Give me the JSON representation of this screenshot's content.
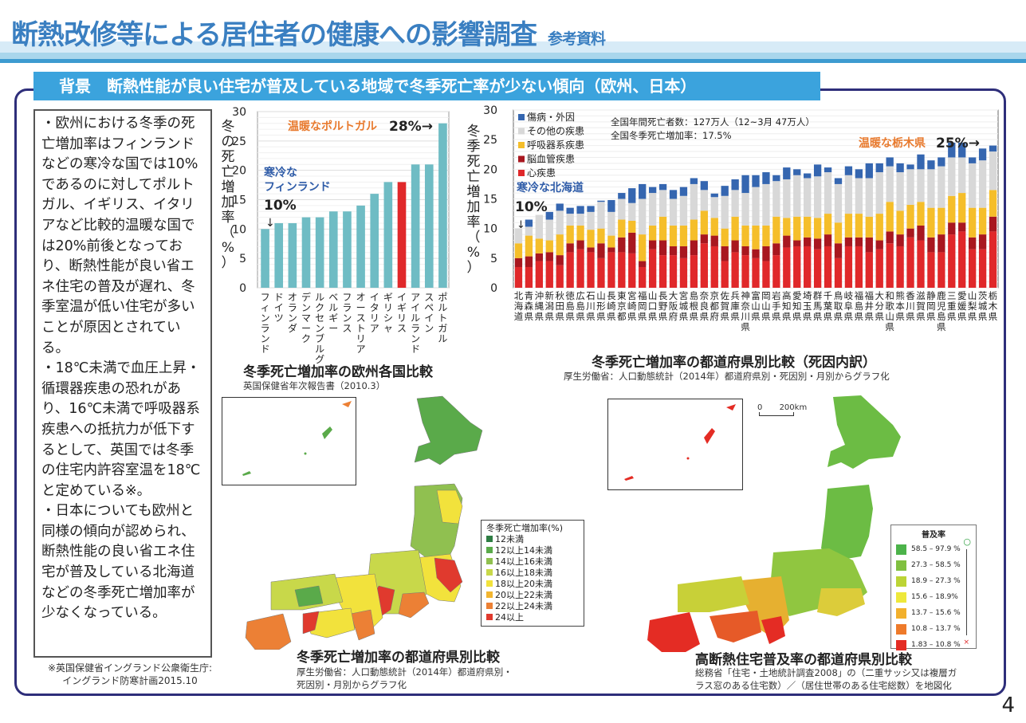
{
  "header": {
    "title": "断熱改修等による居住者の健康への影響調査",
    "subtitle": "参考資料"
  },
  "banner": {
    "label": "背景　断熱性能が良い住宅が普及している地域で冬季死亡率が少ない傾向（欧州、日本）"
  },
  "textbox": {
    "paragraphs": [
      "・欧州における冬季の死亡増加率はフィンランドなどの寒冷な国では10%であるのに対してポルトガル、イギリス、イタリアなど比較的温暖な国では20%前後となっており、断熱性能が良い省エネ住宅の普及が遅れ、冬季室温が低い住宅が多いことが原因とされている。",
      "・18℃未満で血圧上昇・循環器疾患の恐れがあり、16℃未満で呼吸器系疾患への抵抗力が低下するとして、英国では冬季の住宅内許容室温を18℃と定めている※。",
      "・日本についても欧州と同様の傾向が認められ、断熱性能の良い省エネ住宅が普及している北海道などの冬季死亡増加率が少なくなっている。"
    ]
  },
  "footnote": {
    "line1": "※英国保健省イングランド公衆衛生庁:",
    "line2": "イングランド防寒計画2015.10"
  },
  "page_number": "4",
  "chart_data": [
    {
      "type": "bar",
      "title": "冬季死亡増加率の欧州各国比較",
      "source": "英国保健省年次報告書（2010.3）",
      "ylabel": "冬の死亡増加率（%）",
      "xlabel": "",
      "ylim": [
        0,
        30
      ],
      "yticks": [
        0,
        5,
        10,
        15,
        20,
        25,
        30
      ],
      "grid": true,
      "categories": [
        "フィンランド",
        "ドイツ",
        "オランダ",
        "デンマーク",
        "ルクセンブルグ",
        "ベルギー",
        "フランス",
        "オーストリア",
        "イタリア",
        "ギリシャ",
        "イギリス",
        "アイルランド",
        "スペイン",
        "ポルトガル"
      ],
      "values": [
        10,
        11,
        11,
        12,
        12,
        13,
        13,
        14,
        16,
        18,
        18,
        21,
        21,
        28
      ],
      "highlight_index": 10,
      "colors": {
        "bar": "#6fbcc4",
        "highlight": "#e0282a"
      },
      "annotations": [
        {
          "text_lines": [
            "寒冷な",
            "フィンランド"
          ],
          "value_text": "10%",
          "arrow": "↓",
          "target": "フィンランド",
          "color": "#2f5ca8"
        },
        {
          "text": "温暖なポルトガル",
          "value_text": "28%→",
          "target": "ポルトガル",
          "color": "#e87a2e"
        }
      ]
    },
    {
      "type": "bar",
      "stacked": true,
      "title": "冬季死亡増加率の都道府県別比較（死因内訳）",
      "source": "厚生労働省：人口動態統計（2014年）都道府県別・死因別・月別からグラフ化",
      "ylabel": "冬季死亡増加率（%）",
      "ylim": [
        0,
        30
      ],
      "yticks": [
        0,
        5,
        10,
        15,
        20,
        25,
        30
      ],
      "grid": true,
      "legend_position": "top-left",
      "info_lines": [
        "全国年間死亡者数：127万人（12~3月 47万人）",
        "全国冬季死亡増加率：17.5%"
      ],
      "categories": [
        "北海道",
        "青森県",
        "沖縄県",
        "新潟県",
        "秋田県",
        "徳島県",
        "広島県",
        "石川県",
        "山形県",
        "長崎県",
        "東京都",
        "宮崎県",
        "福岡県",
        "山口県",
        "長野県",
        "大阪府",
        "宮城県",
        "島根県",
        "奈良県",
        "京都府",
        "佐賀県",
        "兵庫県",
        "神奈川県",
        "富山県",
        "岡山県",
        "岩手県",
        "高知県",
        "愛知県",
        "埼玉県",
        "群馬県",
        "千葉県",
        "鳥取県",
        "岐阜県",
        "福島県",
        "福井県",
        "大分県",
        "和歌山県",
        "熊本県",
        "香川県",
        "滋賀県",
        "静岡県",
        "鹿児島県",
        "三重県",
        "愛媛県",
        "山梨県",
        "茨城県",
        "栃木県"
      ],
      "series": [
        {
          "name": "心疾患",
          "color": "#e0282a",
          "values": [
            3.5,
            3.5,
            4.5,
            4.5,
            3.8,
            6.0,
            6.5,
            6.0,
            5.0,
            6.0,
            6.0,
            5.8,
            3.5,
            6.5,
            5.5,
            5.5,
            5.0,
            5.5,
            7.5,
            7.0,
            4.5,
            6.0,
            5.5,
            5.0,
            4.5,
            5.5,
            6.8,
            7.0,
            7.0,
            6.5,
            7.0,
            5.0,
            7.0,
            7.0,
            6.0,
            6.5,
            7.5,
            7.0,
            8.5,
            8.0,
            6.0,
            6.0,
            9.0,
            9.5,
            6.5,
            6.5,
            9.5
          ]
        },
        {
          "name": "脳血管疾患",
          "color": "#a8171f",
          "values": [
            1.5,
            1.8,
            1.3,
            1.5,
            1.7,
            1.5,
            1.5,
            0.8,
            2.5,
            0.8,
            2.5,
            3.5,
            1.0,
            1.5,
            2.5,
            1.5,
            2.0,
            2.5,
            1.5,
            1.8,
            2.5,
            2.0,
            1.5,
            1.5,
            2.5,
            2.0,
            2.0,
            1.0,
            1.5,
            1.8,
            2.0,
            2.5,
            1.5,
            1.5,
            2.5,
            1.5,
            2.0,
            2.0,
            1.5,
            2.5,
            2.5,
            3.0,
            2.0,
            1.5,
            2.0,
            2.5,
            2.5
          ]
        },
        {
          "name": "呼吸器系疾患",
          "color": "#f5be2a",
          "values": [
            2.5,
            3.5,
            2.5,
            2.0,
            3.5,
            3.0,
            2.5,
            3.0,
            2.5,
            2.0,
            3.0,
            2.0,
            4.5,
            2.5,
            4.0,
            3.5,
            3.5,
            3.5,
            4.0,
            3.0,
            3.0,
            4.0,
            3.5,
            4.0,
            3.5,
            4.5,
            3.0,
            4.0,
            3.5,
            3.5,
            3.5,
            3.5,
            4.0,
            4.0,
            3.5,
            4.5,
            5.0,
            4.0,
            4.0,
            4.0,
            5.0,
            4.5,
            4.5,
            5.0,
            5.0,
            4.5,
            4.5
          ]
        },
        {
          "name": "その他の疾患",
          "color": "#d8d8d8",
          "values": [
            2.5,
            1.5,
            4.0,
            3.5,
            4.0,
            2.0,
            2.0,
            3.0,
            4.5,
            4.0,
            3.5,
            3.0,
            6.0,
            5.5,
            4.5,
            4.5,
            5.0,
            6.0,
            3.5,
            3.5,
            5.5,
            4.5,
            5.5,
            6.5,
            7.0,
            6.0,
            6.5,
            7.0,
            6.5,
            7.0,
            7.0,
            6.5,
            6.5,
            6.0,
            6.5,
            7.0,
            6.0,
            6.5,
            6.0,
            5.5,
            6.5,
            7.0,
            6.5,
            6.0,
            7.5,
            8.0,
            6.5
          ]
        },
        {
          "name": "傷病・外因",
          "color": "#3566b0",
          "values": [
            0.0,
            1.2,
            0.0,
            1.3,
            1.2,
            1.0,
            1.3,
            1.0,
            0.2,
            2.0,
            1.0,
            2.5,
            2.5,
            1.0,
            1.0,
            1.5,
            1.5,
            1.0,
            1.5,
            0.6,
            1.7,
            1.8,
            3.0,
            2.0,
            2.0,
            1.0,
            2.0,
            1.0,
            0.8,
            2.0,
            0.8,
            1.0,
            1.5,
            1.5,
            2.5,
            1.5,
            1.5,
            1.5,
            0.8,
            2.5,
            1.5,
            1.5,
            2.5,
            2.5,
            1.0,
            2.0,
            1.0
          ]
        }
      ],
      "annotations": [
        {
          "text": "寒冷な北海道",
          "value_text": "10%",
          "arrow": "↓",
          "target": "北海道",
          "color": "#2f5ca8"
        },
        {
          "text": "温暖な栃木県",
          "value_text": "25%→",
          "target": "栃木県",
          "color": "#e87a2e"
        }
      ]
    }
  ],
  "map1": {
    "title": "冬季死亡増加率の都道府県別比較",
    "source_lines": [
      "厚生労働省：人口動態統計（2014年）都道府県別・",
      "死因別・月別からグラフ化"
    ],
    "legend_title": "冬季死亡増加率(%)",
    "legend": [
      {
        "label": "12未満",
        "color": "#2e7d43"
      },
      {
        "label": "12以上14未満",
        "color": "#5aaa4a"
      },
      {
        "label": "14以上16未満",
        "color": "#90c050"
      },
      {
        "label": "16以上18未満",
        "color": "#c8d84a"
      },
      {
        "label": "18以上20未満",
        "color": "#f2e23c"
      },
      {
        "label": "20以上22未満",
        "color": "#f2b530"
      },
      {
        "label": "22以上24未満",
        "color": "#ec8035"
      },
      {
        "label": "24以上",
        "color": "#e03a2e"
      }
    ]
  },
  "map2": {
    "title": "高断熱住宅普及率の都道府県別比較",
    "source_lines": [
      "総務省「住宅・土地統計調査2008」の（二重サッシ又は複層ガ",
      "ラス窓のある住宅数）／（居住世帯のある住宅総数）を地図化"
    ],
    "legend_title": "普及率",
    "scale_label_0": "0",
    "scale_label_1": "200km",
    "legend_top_marker": "○",
    "legend_bottom_marker": "×",
    "legend": [
      {
        "label": "58.5 – 97.9 %",
        "color": "#4cb34a"
      },
      {
        "label": "27.3 – 58.5 %",
        "color": "#80c040"
      },
      {
        "label": "18.9 – 27.3 %",
        "color": "#bcd435"
      },
      {
        "label": "15.6 – 18.9%",
        "color": "#eee83a"
      },
      {
        "label": "13.7 – 15.6 %",
        "color": "#f2b02c"
      },
      {
        "label": "10.8 – 13.7 %",
        "color": "#ee7a2a"
      },
      {
        "label": "1.83 – 10.8 %",
        "color": "#e42c24"
      }
    ]
  }
}
